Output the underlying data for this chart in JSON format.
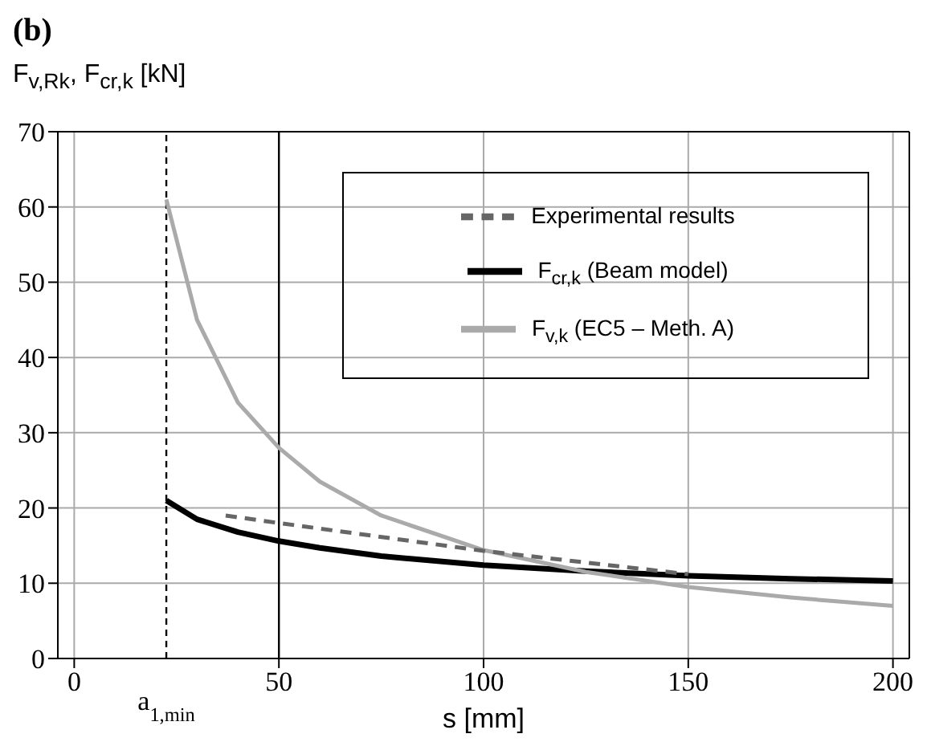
{
  "chart_data": {
    "type": "line",
    "title": "(b)",
    "ylabel": "F$_{v,Rk}$, F$_{cr,k}$ [kN]",
    "xlabel": "s [mm]",
    "xlim": [
      -4,
      204
    ],
    "xticks": [
      0,
      50,
      100,
      150,
      200
    ],
    "ylim": [
      0,
      70
    ],
    "yticks": [
      0,
      10,
      20,
      30,
      40,
      50,
      60,
      70
    ],
    "grid": true,
    "legend": "top right",
    "series": [
      {
        "name": "F$_{cr,k}$ (Beam model)",
        "color": "#000000",
        "x": [
          22.5,
          30,
          40,
          50,
          60,
          75,
          100,
          125,
          150,
          175,
          200
        ],
        "values": [
          21,
          18.5,
          16.8,
          15.6,
          14.7,
          13.6,
          12.4,
          11.6,
          11,
          10.6,
          10.3
        ]
      },
      {
        "name": "F$_{v,k}$ (EC5 – Meth. A)",
        "color": "#aaaaaa",
        "x": [
          22.5,
          30,
          40,
          50,
          60,
          75,
          100,
          125,
          150,
          175,
          200
        ],
        "values": [
          61,
          45,
          34,
          28,
          23.5,
          19,
          14.4,
          11.5,
          9.5,
          8.1,
          7
        ]
      },
      {
        "name": "Experimental results",
        "color": "#666666",
        "line_style": "dashed",
        "x": [
          37,
          50,
          100,
          150
        ],
        "values": [
          19,
          18,
          14.3,
          11.2
        ]
      }
    ],
    "ref_lines": [
      {
        "axis": "x",
        "value": 22.5,
        "label": "a$_{1,min}$",
        "line_style": "dashed",
        "color": "#000000"
      },
      {
        "axis": "x",
        "value": 50,
        "color": "#000000"
      }
    ]
  }
}
